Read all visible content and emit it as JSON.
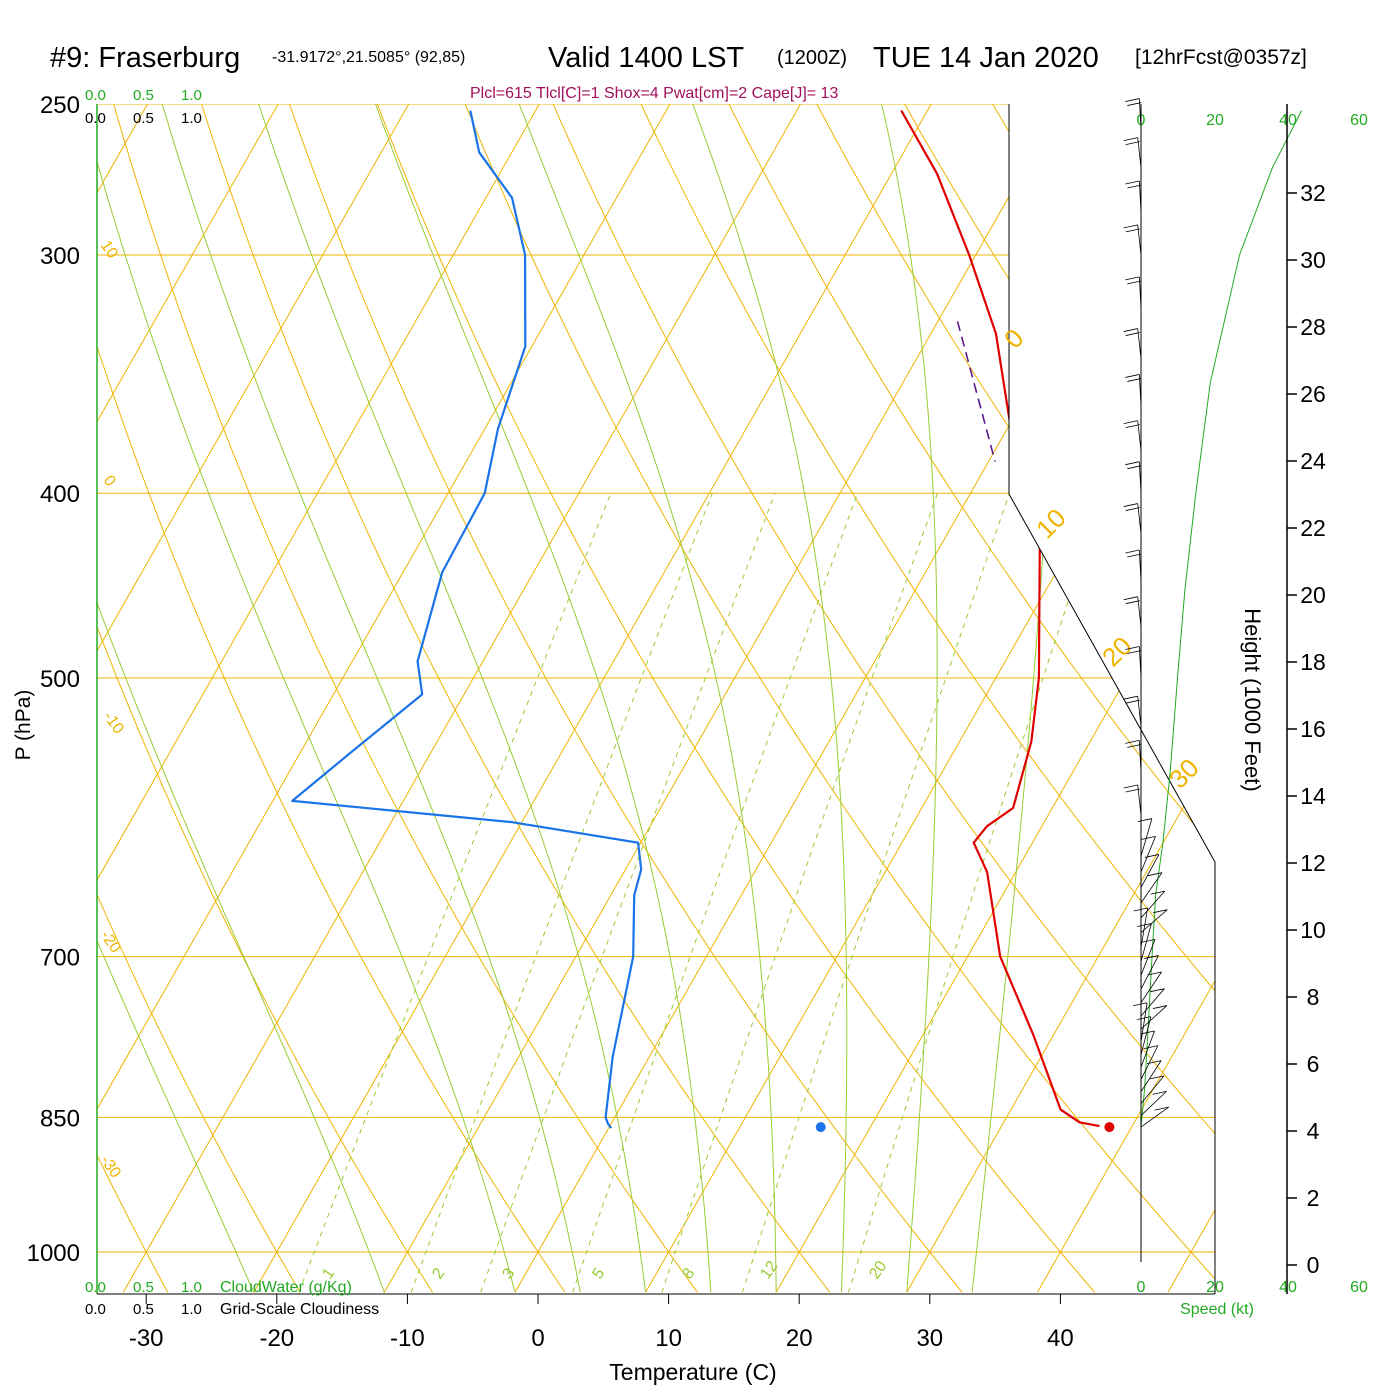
{
  "header": {
    "station": "#9: Fraserburg",
    "coords": "-31.9172°,21.5085° (92,85)",
    "valid_label": "Valid 1400 LST",
    "utc_label": "(1200Z)",
    "date_label": "TUE 14 Jan 2020",
    "forecast_label": "[12hrFcst@0357z]",
    "indices": "Plcl=615 Tlcl[C]=1 Shox=4 Pwat[cm]=2 Cape[J]= 13"
  },
  "colors": {
    "isotherm": "#f0b400",
    "dry_adiabat": "#f0b400",
    "moist_adiabat": "#99cc33",
    "mixing_ratio": "#99cc33",
    "temperature": "#e00000",
    "dewpoint": "#1a73e8",
    "parcel": "#5b1a8c",
    "green_label": "#22aa22",
    "indices_text": "#a0105a"
  },
  "legend": {
    "cloud_scale_values": [
      "0.0",
      "0.5",
      "1.0"
    ],
    "cloud_water_label": "CloudWater (g/Kg)",
    "cloudiness_label": "Grid-Scale Cloudiness",
    "speed_label": "Speed (kt)",
    "speed_ticks": [
      "0",
      "20",
      "40",
      "60"
    ]
  },
  "chart_data": {
    "type": "line",
    "title": "#9: Fraserburg  Valid 1400 LST (1200Z) TUE 14 Jan 2020",
    "xlabel": "Temperature (C)",
    "ylabel": "P (hPa)",
    "y2label": "Height (1000 Feet)",
    "x_ticks": [
      "-30",
      "-20",
      "-10",
      "0",
      "10",
      "20",
      "30",
      "40"
    ],
    "pressure_ticks": [
      "250",
      "300",
      "400",
      "500",
      "700",
      "850",
      "1000"
    ],
    "height_ticks": [
      "0",
      "2",
      "4",
      "6",
      "8",
      "10",
      "12",
      "14",
      "16",
      "18",
      "20",
      "22",
      "24",
      "26",
      "28",
      "30",
      "32"
    ],
    "dry_adiabat_labels": [
      "10",
      "0",
      "-10",
      "-20",
      "-30",
      "0",
      "10",
      "20",
      "30"
    ],
    "mixing_ratio_labels": [
      "1",
      "2",
      "3",
      "5",
      "8",
      "12",
      "20"
    ],
    "series": [
      {
        "name": "Temperature",
        "points": [
          [
            37.5,
            859
          ],
          [
            35.8,
            855
          ],
          [
            33.8,
            842
          ],
          [
            28.5,
            770
          ],
          [
            22.5,
            700
          ],
          [
            17.8,
            632
          ],
          [
            15.5,
            610
          ],
          [
            15.8,
            598
          ],
          [
            17.0,
            585
          ],
          [
            15.5,
            540
          ],
          [
            13.3,
            500
          ],
          [
            7.5,
            425
          ],
          [
            1.5,
            380
          ],
          [
            -5.0,
            330
          ],
          [
            -10.5,
            300
          ],
          [
            -16.5,
            272
          ],
          [
            -22.0,
            252
          ]
        ]
      },
      {
        "name": "Dewpoint",
        "points": [
          [
            0.2,
            861
          ],
          [
            -0.2,
            857
          ],
          [
            -0.7,
            850
          ],
          [
            -2.8,
            790
          ],
          [
            -5.6,
            700
          ],
          [
            -8.2,
            650
          ],
          [
            -8.8,
            630
          ],
          [
            -10.2,
            610
          ],
          [
            -20.8,
            595
          ],
          [
            -38.5,
            580
          ],
          [
            -36.2,
            548
          ],
          [
            -33.2,
            510
          ],
          [
            -35.0,
            490
          ],
          [
            -37.0,
            440
          ],
          [
            -37.2,
            400
          ],
          [
            -39.0,
            370
          ],
          [
            -40.5,
            335
          ],
          [
            -44.5,
            300
          ],
          [
            -48.0,
            280
          ],
          [
            -52.5,
            265
          ],
          [
            -55.0,
            252
          ]
        ]
      },
      {
        "name": "Parcel",
        "points": [
          [
            -8.5,
            325
          ],
          [
            0.5,
            385
          ]
        ]
      }
    ],
    "surface_temperature": 38.3,
    "surface_dewpoint": 16.2,
    "surface_pressure": 860,
    "wind_speed_profile": [
      [
        0,
        860
      ],
      [
        1,
        820
      ],
      [
        2,
        760
      ],
      [
        3,
        700
      ],
      [
        4,
        650
      ],
      [
        6,
        610
      ],
      [
        8,
        560
      ],
      [
        10,
        500
      ],
      [
        12,
        450
      ],
      [
        15,
        400
      ],
      [
        19,
        350
      ],
      [
        27,
        300
      ],
      [
        36,
        270
      ],
      [
        44,
        252
      ]
    ]
  }
}
